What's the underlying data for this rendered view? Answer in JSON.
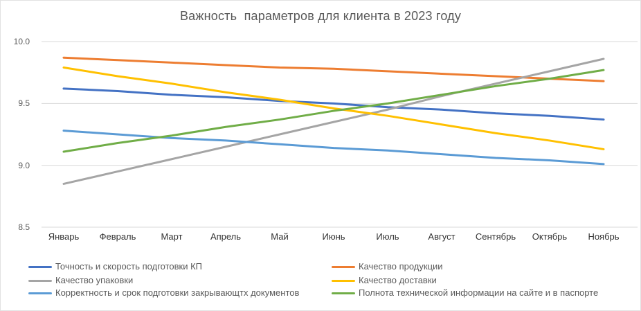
{
  "colors": {
    "title_text": "#595959",
    "y_axis_labels": "#595959",
    "x_axis_labels": "#333333",
    "gridline": "#D9D9D9",
    "background": "#FFFFFF"
  },
  "chart_data": {
    "type": "line",
    "title": "Важность  параметров для клиента в 2023 году",
    "categories": [
      "Январь",
      "Февраль",
      "Март",
      "Апрель",
      "Май",
      "Июнь",
      "Июль",
      "Август",
      "Сентябрь",
      "Октябрь",
      "Ноябрь"
    ],
    "series": [
      {
        "name": "Точность и скорость подготовки КП",
        "color": "#4472C4",
        "values": [
          9.62,
          9.6,
          9.57,
          9.55,
          9.52,
          9.5,
          9.47,
          9.45,
          9.42,
          9.4,
          9.37
        ]
      },
      {
        "name": "Качество продукции",
        "color": "#ED7D31",
        "values": [
          9.87,
          9.85,
          9.83,
          9.81,
          9.79,
          9.78,
          9.76,
          9.74,
          9.72,
          9.7,
          9.68
        ]
      },
      {
        "name": "Качество упаковки",
        "color": "#A5A5A5",
        "values": [
          8.85,
          8.95,
          9.05,
          9.15,
          9.25,
          9.35,
          9.45,
          9.56,
          9.66,
          9.76,
          9.86
        ]
      },
      {
        "name": "Качество доставки",
        "color": "#FFC000",
        "values": [
          9.79,
          9.72,
          9.66,
          9.59,
          9.53,
          9.46,
          9.4,
          9.33,
          9.26,
          9.2,
          9.13
        ]
      },
      {
        "name": "Корректность и срок подготовки закрывающтх документов",
        "color": "#5B9BD5",
        "values": [
          9.28,
          9.25,
          9.22,
          9.2,
          9.17,
          9.14,
          9.12,
          9.09,
          9.06,
          9.04,
          9.01
        ]
      },
      {
        "name": "Полнота технической информации на сайте и в паспорте",
        "color": "#70AD47",
        "values": [
          9.11,
          9.18,
          9.24,
          9.31,
          9.37,
          9.44,
          9.5,
          9.57,
          9.64,
          9.7,
          9.77
        ]
      }
    ],
    "ylim": [
      8.5,
      10.0
    ],
    "yticks": [
      8.5,
      9.0,
      9.5,
      10.0
    ],
    "grid": true,
    "legend_position": "bottom"
  }
}
